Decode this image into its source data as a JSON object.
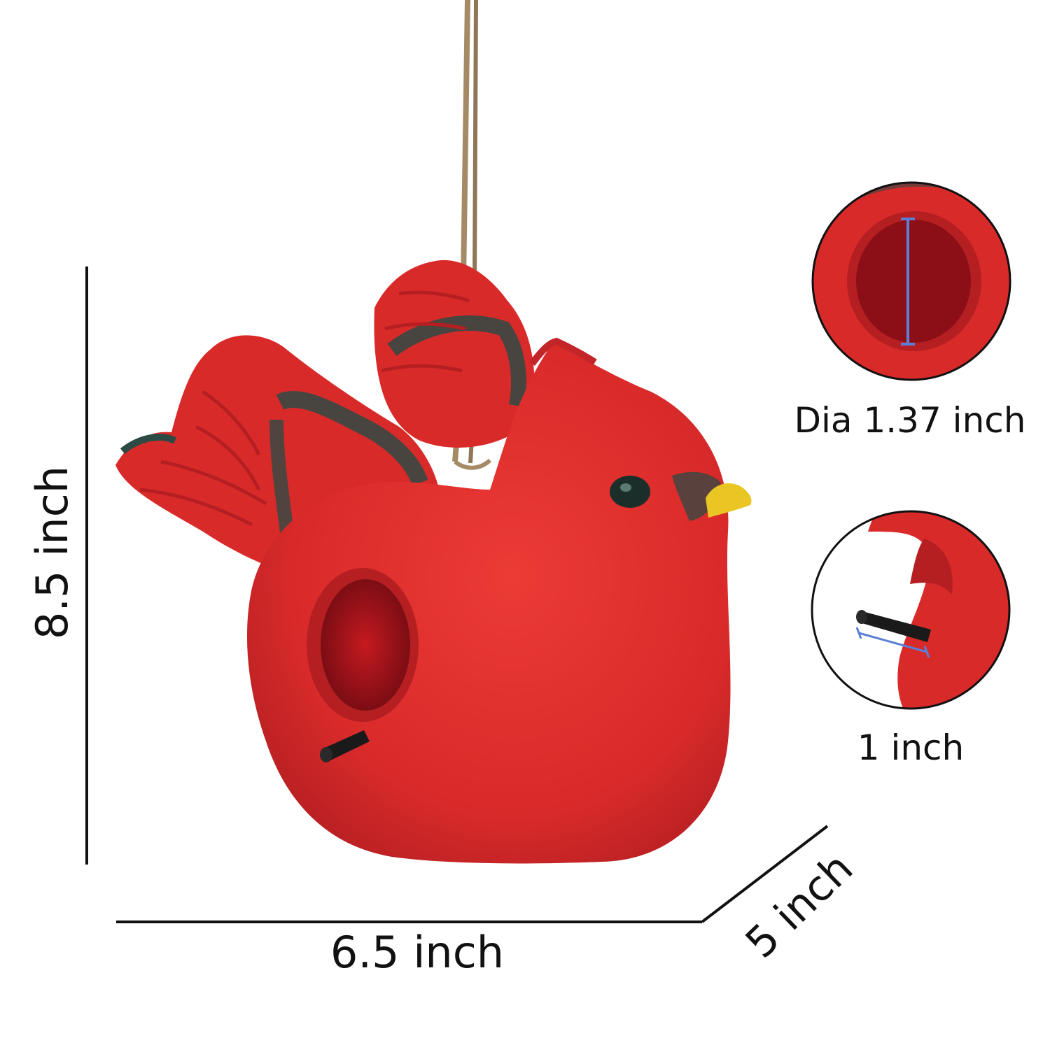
{
  "dimensions": {
    "height": "8.5 inch",
    "width": "6.5 inch",
    "depth": "5 inch"
  },
  "details": {
    "entrance_hole": "Dia 1.37 inch",
    "perch": "1 inch"
  },
  "colors": {
    "bird_red": "#d92a2a",
    "wing_dark": "#2e4a44",
    "beak_yellow": "#e9c623",
    "rope": "#a58a66",
    "measure_blue": "#5b7fd6",
    "line_black": "#111111"
  }
}
